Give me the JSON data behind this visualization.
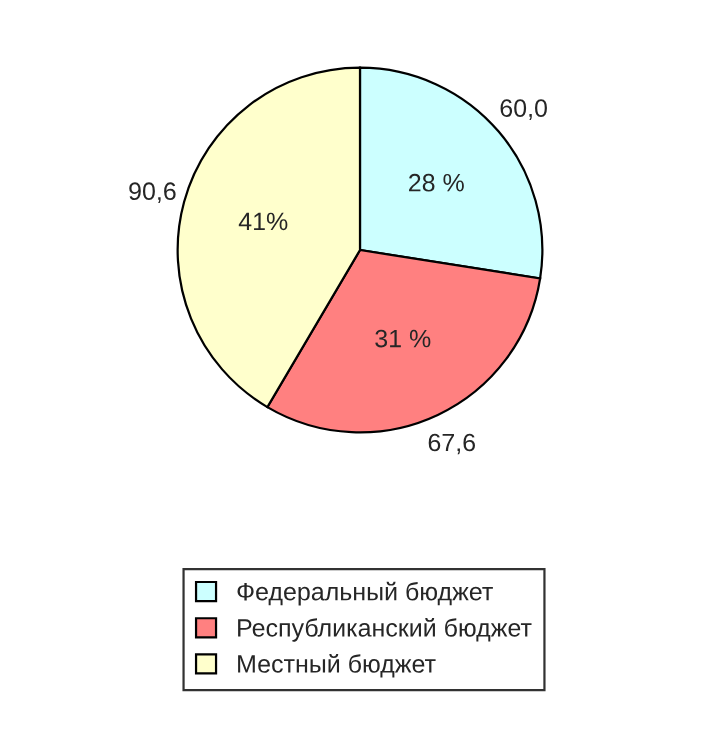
{
  "chart_data": {
    "type": "pie",
    "categories": [
      "Федеральный бюджет",
      "Республиканский бюджет",
      "Местный бюджет"
    ],
    "values": [
      60.0,
      67.6,
      90.6
    ],
    "value_labels": [
      "60,0",
      "67,6",
      "90,6"
    ],
    "colors": [
      "#ccffff",
      "#ff8080",
      "#ffffcc"
    ],
    "annotations": [
      "28 %",
      "31 %",
      "41%"
    ],
    "legend": "bottom"
  }
}
